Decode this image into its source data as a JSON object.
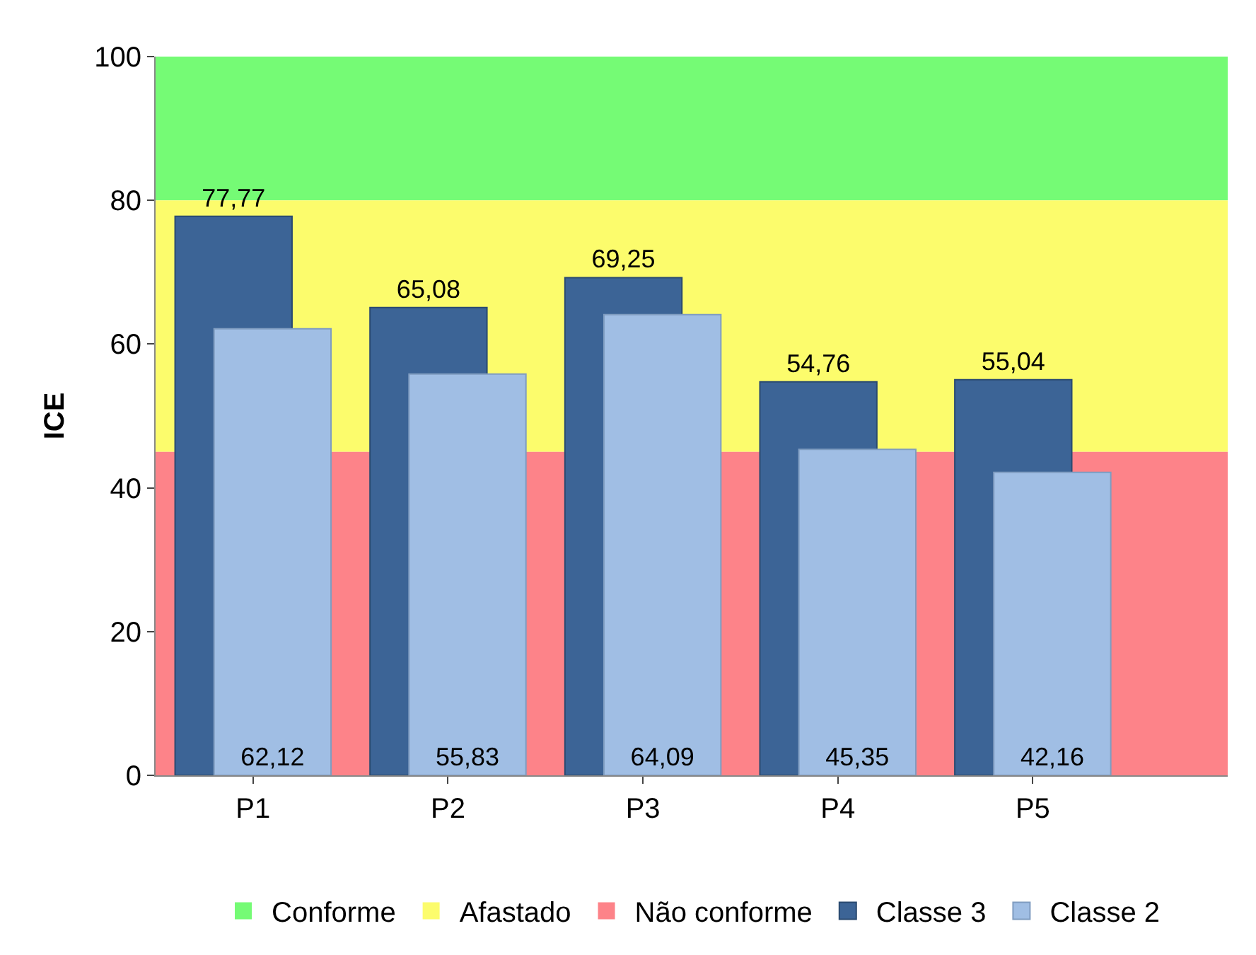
{
  "chart_data": {
    "type": "bar",
    "ylabel": "ICE",
    "categories": [
      "P1",
      "P2",
      "P3",
      "P4",
      "P5"
    ],
    "series": [
      {
        "name": "Classe 3",
        "color": "#3c6496",
        "values": [
          77.77,
          65.08,
          69.25,
          54.76,
          55.04
        ],
        "value_labels": [
          "77,77",
          "65,08",
          "69,25",
          "54,76",
          "55,04"
        ]
      },
      {
        "name": "Classe 2",
        "color": "#a0bee4",
        "values": [
          62.12,
          55.83,
          64.09,
          45.35,
          42.16
        ],
        "value_labels": [
          "62,12",
          "55,83",
          "64,09",
          "45,35",
          "42,16"
        ]
      }
    ],
    "bands": [
      {
        "axis": "y",
        "from": 80,
        "to": 100,
        "label": "Conforme",
        "color": "#75fb75"
      },
      {
        "axis": "y",
        "from": 45,
        "to": 80,
        "label": "Afastado",
        "color": "#fcfc6c"
      },
      {
        "axis": "y",
        "from": 0,
        "to": 45,
        "label": "Não conforme",
        "color": "#fd8389"
      }
    ],
    "ylim": [
      0,
      100
    ],
    "yticks": [
      0,
      20,
      40,
      60,
      80,
      100
    ],
    "grid": false,
    "legend": "bottom"
  }
}
